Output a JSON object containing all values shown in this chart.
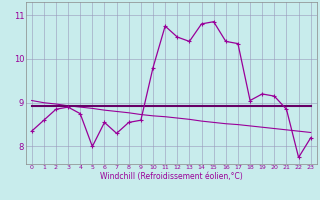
{
  "xlabel": "Windchill (Refroidissement éolien,°C)",
  "xlim": [
    -0.5,
    23.5
  ],
  "ylim": [
    7.6,
    11.3
  ],
  "xticks": [
    0,
    1,
    2,
    3,
    4,
    5,
    6,
    7,
    8,
    9,
    10,
    11,
    12,
    13,
    14,
    15,
    16,
    17,
    18,
    19,
    20,
    21,
    22,
    23
  ],
  "yticks": [
    8,
    9,
    10,
    11
  ],
  "bg_color": "#c8ecec",
  "line_color": "#990099",
  "grid_color": "#9999bb",
  "line1_x": [
    0,
    1,
    2,
    3,
    4,
    5,
    6,
    7,
    8,
    9,
    10,
    11,
    12,
    13,
    14,
    15,
    16,
    17,
    18,
    19,
    20,
    21,
    22,
    23
  ],
  "line1_y": [
    8.35,
    8.6,
    8.85,
    8.9,
    8.75,
    8.0,
    8.55,
    8.3,
    8.55,
    8.6,
    9.8,
    10.75,
    10.5,
    10.4,
    10.8,
    10.85,
    10.4,
    10.35,
    9.05,
    9.2,
    9.15,
    8.85,
    7.75,
    8.2
  ],
  "line2_x": [
    0,
    23
  ],
  "line2_y": [
    8.92,
    8.92
  ],
  "line3_x": [
    0,
    1,
    2,
    3,
    4,
    5,
    6,
    7,
    8,
    9,
    10,
    11,
    12,
    13,
    14,
    15,
    16,
    17,
    18,
    19,
    20,
    21,
    22,
    23
  ],
  "line3_y": [
    9.05,
    9.0,
    8.97,
    8.93,
    8.9,
    8.87,
    8.83,
    8.8,
    8.77,
    8.73,
    8.7,
    8.68,
    8.65,
    8.62,
    8.58,
    8.55,
    8.52,
    8.5,
    8.47,
    8.44,
    8.41,
    8.38,
    8.35,
    8.32
  ]
}
